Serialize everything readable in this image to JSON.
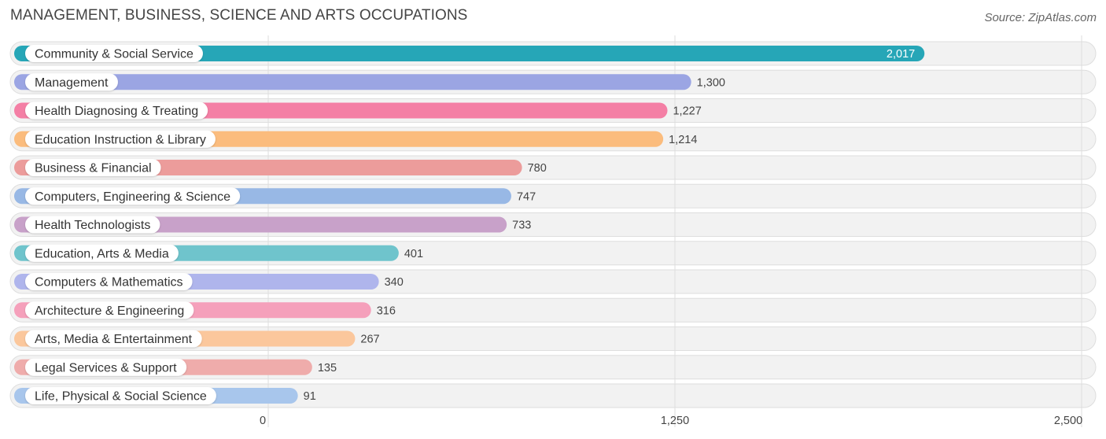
{
  "title": "MANAGEMENT, BUSINESS, SCIENCE AND ARTS OCCUPATIONS",
  "source": "Source: ZipAtlas.com",
  "chart_data": {
    "type": "bar",
    "orientation": "horizontal",
    "title": "MANAGEMENT, BUSINESS, SCIENCE AND ARTS OCCUPATIONS",
    "xlim": [
      0,
      2500
    ],
    "x_ticks": [
      0,
      1250,
      2500
    ],
    "x_tick_labels": [
      "0",
      "1,250",
      "2,500"
    ],
    "grid": true,
    "categories": [
      "Community & Social Service",
      "Management",
      "Health Diagnosing & Treating",
      "Education Instruction & Library",
      "Business & Financial",
      "Computers, Engineering & Science",
      "Health Technologists",
      "Education, Arts & Media",
      "Computers & Mathematics",
      "Architecture & Engineering",
      "Arts, Media & Entertainment",
      "Legal Services & Support",
      "Life, Physical & Social Science"
    ],
    "values": [
      2017,
      1300,
      1227,
      1214,
      780,
      747,
      733,
      401,
      340,
      316,
      267,
      135,
      91
    ],
    "value_labels": [
      "2,017",
      "1,300",
      "1,227",
      "1,214",
      "780",
      "747",
      "733",
      "401",
      "340",
      "316",
      "267",
      "135",
      "91"
    ],
    "colors": [
      "#26a6b7",
      "#9ba5e3",
      "#f47fa5",
      "#fbbc7d",
      "#ec9c9b",
      "#98b8e5",
      "#c8a1c9",
      "#6fc4cc",
      "#afb5ec",
      "#f5a0bb",
      "#fbc79c",
      "#efacab",
      "#a8c6ec"
    ]
  }
}
